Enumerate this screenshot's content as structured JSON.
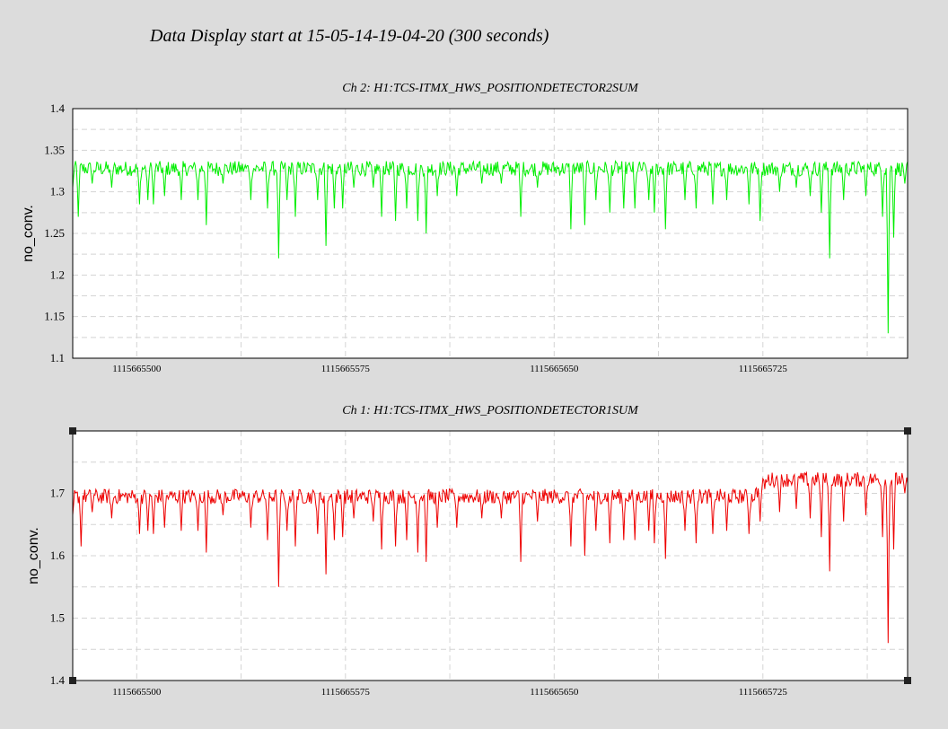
{
  "page_title": "Data Display start at 15-05-14-19-04-20 (300 seconds)",
  "chart_data": [
    {
      "type": "line",
      "title": "Ch 2: H1:TCS-ITMX_HWS_POSITIONDETECTOR2SUM",
      "ylabel": "no_conv.",
      "xlabel": "",
      "color": "#00ee00",
      "xlim": [
        1115665477,
        1115665777
      ],
      "ylim": [
        1.1,
        1.4
      ],
      "x_ticks": [
        1115665500,
        1115665575,
        1115665650,
        1115665725
      ],
      "x_tick_labels": [
        "1115665500",
        "1115665575",
        "1115665650",
        "1115665725"
      ],
      "y_ticks": [
        1.1,
        1.15,
        1.2,
        1.25,
        1.3,
        1.35,
        1.4
      ],
      "y_tick_labels": [
        "1.1",
        "1.15",
        "1.2",
        "1.25",
        "1.3",
        "1.35",
        "1.4"
      ],
      "grid": true,
      "series": [
        {
          "baseline": 1.328,
          "noise": 0.009,
          "dips": [
            [
              1115665477,
              1.305
            ],
            [
              1115665479,
              1.27
            ],
            [
              1115665484,
              1.31
            ],
            [
              1115665491,
              1.305
            ],
            [
              1115665501,
              1.285
            ],
            [
              1115665504,
              1.29
            ],
            [
              1115665506,
              1.285
            ],
            [
              1115665510,
              1.295
            ],
            [
              1115665516,
              1.29
            ],
            [
              1115665522,
              1.29
            ],
            [
              1115665525,
              1.26
            ],
            [
              1115665531,
              1.31
            ],
            [
              1115665541,
              1.29
            ],
            [
              1115665547,
              1.28
            ],
            [
              1115665551,
              1.22
            ],
            [
              1115665554,
              1.29
            ],
            [
              1115665557,
              1.27
            ],
            [
              1115665565,
              1.29
            ],
            [
              1115665568,
              1.235
            ],
            [
              1115665571,
              1.28
            ],
            [
              1115665574,
              1.28
            ],
            [
              1115665578,
              1.305
            ],
            [
              1115665585,
              1.305
            ],
            [
              1115665588,
              1.27
            ],
            [
              1115665593,
              1.265
            ],
            [
              1115665597,
              1.28
            ],
            [
              1115665601,
              1.265
            ],
            [
              1115665604,
              1.25
            ],
            [
              1115665608,
              1.295
            ],
            [
              1115665615,
              1.295
            ],
            [
              1115665624,
              1.31
            ],
            [
              1115665631,
              1.31
            ],
            [
              1115665638,
              1.27
            ],
            [
              1115665644,
              1.305
            ],
            [
              1115665656,
              1.255
            ],
            [
              1115665661,
              1.26
            ],
            [
              1115665665,
              1.29
            ],
            [
              1115665670,
              1.275
            ],
            [
              1115665675,
              1.28
            ],
            [
              1115665679,
              1.28
            ],
            [
              1115665684,
              1.29
            ],
            [
              1115665686,
              1.275
            ],
            [
              1115665690,
              1.255
            ],
            [
              1115665697,
              1.29
            ],
            [
              1115665701,
              1.28
            ],
            [
              1115665707,
              1.285
            ],
            [
              1115665712,
              1.29
            ],
            [
              1115665720,
              1.285
            ],
            [
              1115665724,
              1.265
            ],
            [
              1115665731,
              1.3
            ],
            [
              1115665737,
              1.305
            ],
            [
              1115665742,
              1.295
            ],
            [
              1115665746,
              1.275
            ],
            [
              1115665749,
              1.22
            ],
            [
              1115665754,
              1.29
            ],
            [
              1115665762,
              1.295
            ],
            [
              1115665768,
              1.27
            ],
            [
              1115665770,
              1.13
            ],
            [
              1115665772,
              1.245
            ],
            [
              1115665776,
              1.31
            ]
          ]
        }
      ]
    },
    {
      "type": "line",
      "title": "Ch 1: H1:TCS-ITMX_HWS_POSITIONDETECTOR1SUM",
      "ylabel": "no_conv.",
      "xlabel": "",
      "color": "#ee0000",
      "xlim": [
        1115665477,
        1115665777
      ],
      "ylim": [
        1.4,
        1.8
      ],
      "x_ticks": [
        1115665500,
        1115665575,
        1115665650,
        1115665725
      ],
      "x_tick_labels": [
        "1115665500",
        "1115665575",
        "1115665650",
        "1115665725"
      ],
      "y_ticks": [
        1.4,
        1.5,
        1.6,
        1.7
      ],
      "y_tick_labels": [
        "1.4",
        "1.5",
        "1.6",
        "1.7"
      ],
      "grid": true,
      "series": [
        {
          "baseline": 1.695,
          "baseline_shift": [
            [
              1115665720,
              1.688
            ],
            [
              1115665727,
              1.722
            ]
          ],
          "noise": 0.012,
          "dips": [
            [
              1115665477,
              1.665
            ],
            [
              1115665480,
              1.615
            ],
            [
              1115665484,
              1.67
            ],
            [
              1115665491,
              1.66
            ],
            [
              1115665501,
              1.635
            ],
            [
              1115665504,
              1.64
            ],
            [
              1115665506,
              1.635
            ],
            [
              1115665510,
              1.645
            ],
            [
              1115665516,
              1.64
            ],
            [
              1115665522,
              1.64
            ],
            [
              1115665525,
              1.605
            ],
            [
              1115665531,
              1.665
            ],
            [
              1115665541,
              1.645
            ],
            [
              1115665547,
              1.625
            ],
            [
              1115665551,
              1.55
            ],
            [
              1115665554,
              1.64
            ],
            [
              1115665557,
              1.615
            ],
            [
              1115665565,
              1.635
            ],
            [
              1115665568,
              1.57
            ],
            [
              1115665571,
              1.625
            ],
            [
              1115665574,
              1.63
            ],
            [
              1115665578,
              1.66
            ],
            [
              1115665585,
              1.655
            ],
            [
              1115665588,
              1.61
            ],
            [
              1115665593,
              1.615
            ],
            [
              1115665597,
              1.625
            ],
            [
              1115665601,
              1.605
            ],
            [
              1115665604,
              1.59
            ],
            [
              1115665608,
              1.645
            ],
            [
              1115665615,
              1.645
            ],
            [
              1115665624,
              1.66
            ],
            [
              1115665631,
              1.66
            ],
            [
              1115665638,
              1.59
            ],
            [
              1115665644,
              1.655
            ],
            [
              1115665656,
              1.615
            ],
            [
              1115665661,
              1.6
            ],
            [
              1115665665,
              1.64
            ],
            [
              1115665670,
              1.62
            ],
            [
              1115665675,
              1.625
            ],
            [
              1115665679,
              1.625
            ],
            [
              1115665684,
              1.64
            ],
            [
              1115665686,
              1.62
            ],
            [
              1115665690,
              1.595
            ],
            [
              1115665697,
              1.64
            ],
            [
              1115665701,
              1.62
            ],
            [
              1115665707,
              1.635
            ],
            [
              1115665712,
              1.64
            ],
            [
              1115665720,
              1.635
            ],
            [
              1115665724,
              1.655
            ],
            [
              1115665731,
              1.67
            ],
            [
              1115665737,
              1.675
            ],
            [
              1115665742,
              1.66
            ],
            [
              1115665746,
              1.63
            ],
            [
              1115665749,
              1.575
            ],
            [
              1115665754,
              1.655
            ],
            [
              1115665762,
              1.665
            ],
            [
              1115665768,
              1.63
            ],
            [
              1115665770,
              1.46
            ],
            [
              1115665772,
              1.61
            ],
            [
              1115665776,
              1.7
            ]
          ]
        }
      ]
    }
  ]
}
